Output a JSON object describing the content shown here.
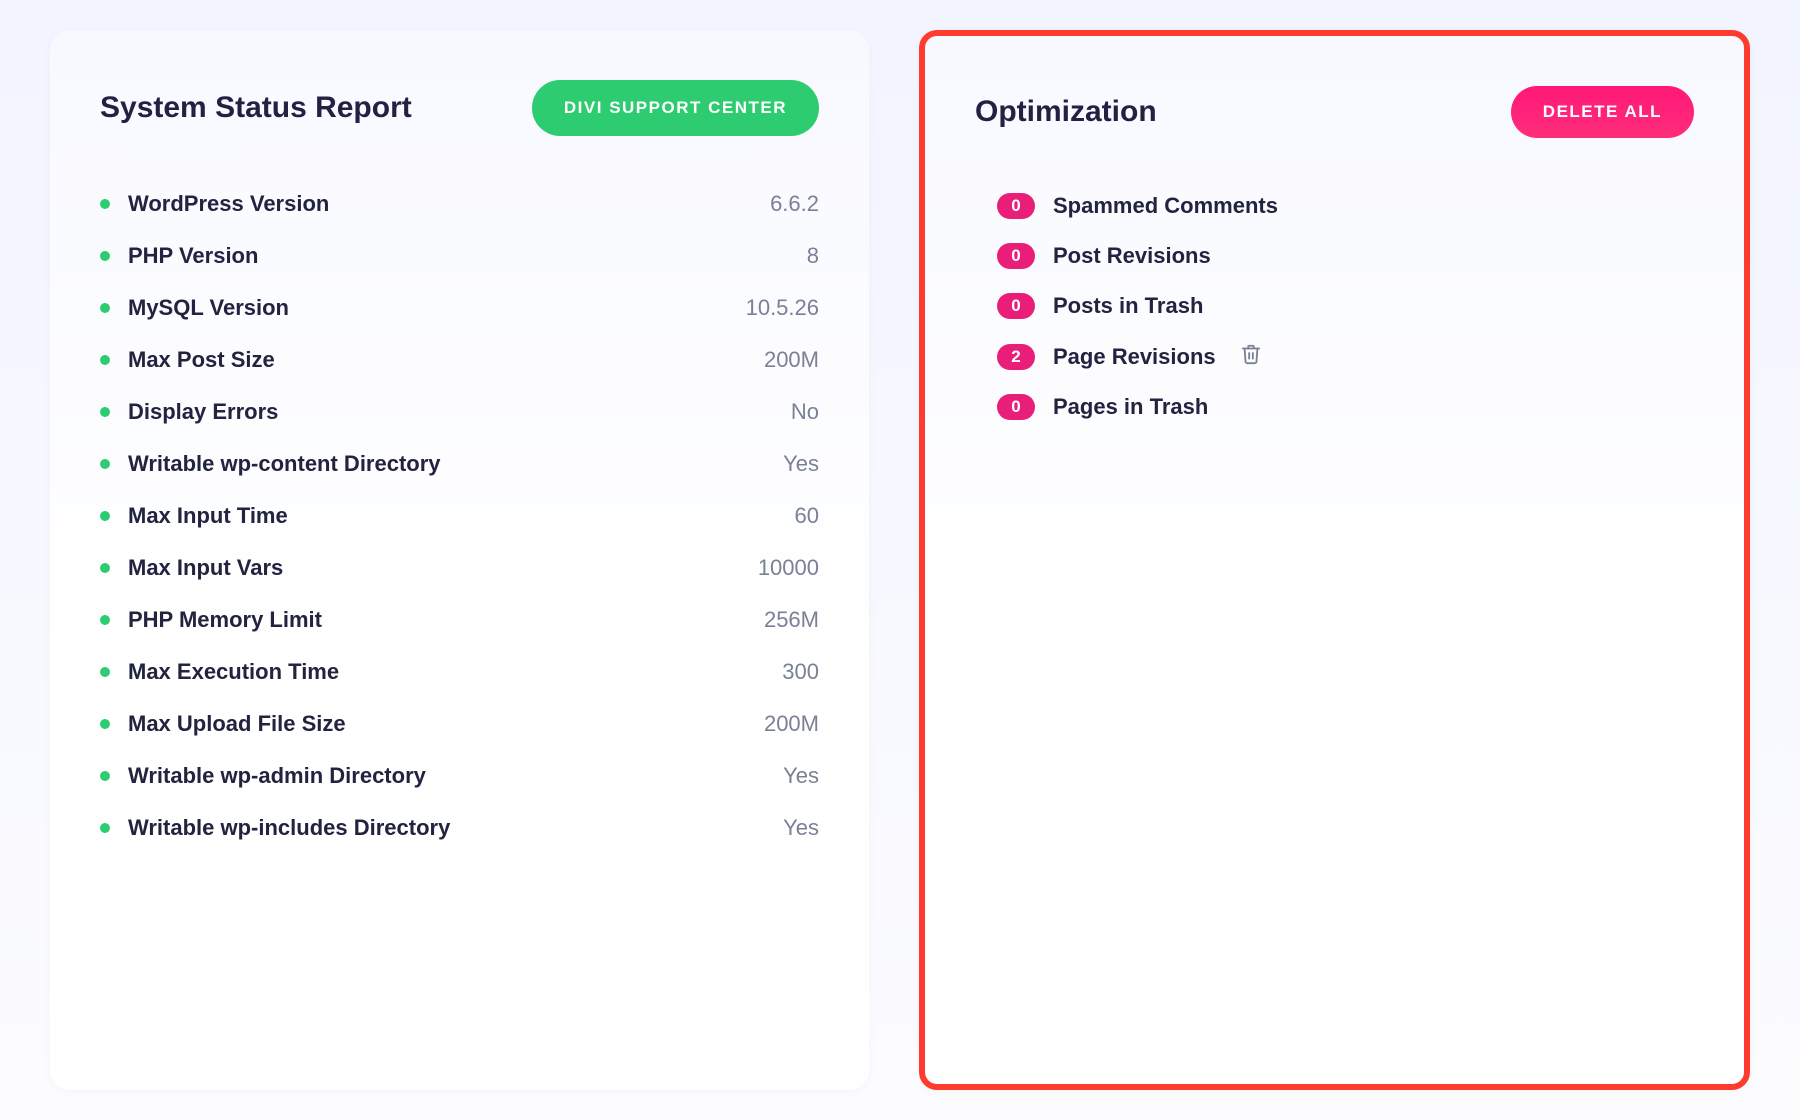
{
  "colors": {
    "green": "#2ecc71",
    "pink": "#e91e79",
    "pinkBtnTop": "#ff1878",
    "pinkBtnBottom": "#ff2d7a",
    "highlightBorder": "#ff3b30",
    "title": "#212241",
    "valueGray": "#7a8096",
    "bgTop": "#f2f4ff",
    "bgBottom": "#fcfcff",
    "panelBg": "#ffffff"
  },
  "leftPanel": {
    "title": "System Status Report",
    "buttonLabel": "DIVI SUPPORT CENTER",
    "items": [
      {
        "label": "WordPress Version",
        "value": "6.6.2"
      },
      {
        "label": "PHP Version",
        "value": "8"
      },
      {
        "label": "MySQL Version",
        "value": "10.5.26"
      },
      {
        "label": "Max Post Size",
        "value": "200M"
      },
      {
        "label": "Display Errors",
        "value": "No"
      },
      {
        "label": "Writable wp-content Directory",
        "value": "Yes"
      },
      {
        "label": "Max Input Time",
        "value": "60"
      },
      {
        "label": "Max Input Vars",
        "value": "10000"
      },
      {
        "label": "PHP Memory Limit",
        "value": "256M"
      },
      {
        "label": "Max Execution Time",
        "value": "300"
      },
      {
        "label": "Max Upload File Size",
        "value": "200M"
      },
      {
        "label": "Writable wp-admin Directory",
        "value": "Yes"
      },
      {
        "label": "Writable wp-includes Directory",
        "value": "Yes"
      }
    ]
  },
  "rightPanel": {
    "title": "Optimization",
    "buttonLabel": "DELETE ALL",
    "items": [
      {
        "count": "0",
        "label": "Spammed Comments",
        "deletable": false
      },
      {
        "count": "0",
        "label": "Post Revisions",
        "deletable": false
      },
      {
        "count": "0",
        "label": "Posts in Trash",
        "deletable": false
      },
      {
        "count": "2",
        "label": "Page Revisions",
        "deletable": true
      },
      {
        "count": "0",
        "label": "Pages in Trash",
        "deletable": false
      }
    ]
  }
}
